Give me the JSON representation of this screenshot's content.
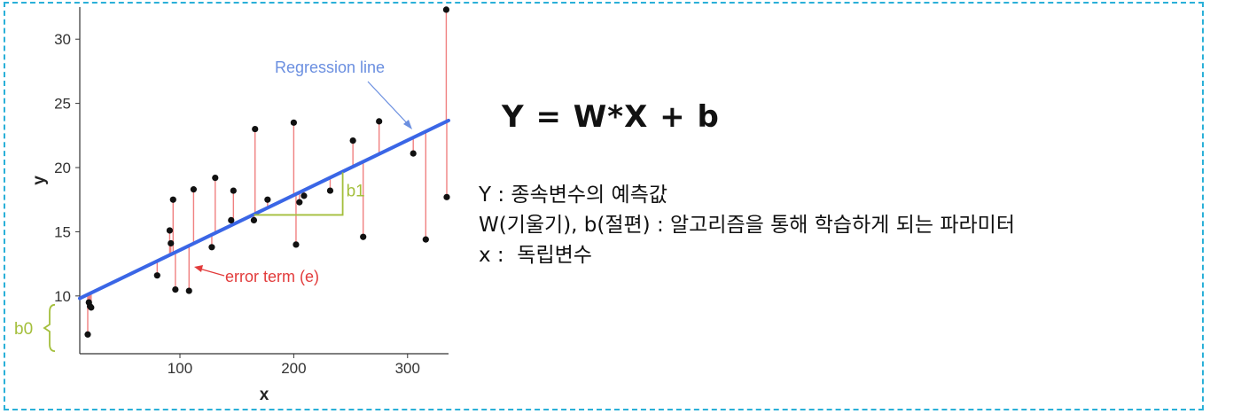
{
  "chart_data": {
    "type": "scatter",
    "xlabel": "x",
    "ylabel": "y",
    "xlim": [
      12,
      336
    ],
    "ylim": [
      5.5,
      32.5
    ],
    "xticks": [
      100,
      200,
      300
    ],
    "yticks": [
      10,
      15,
      20,
      25,
      30
    ],
    "points": [
      {
        "x": 20,
        "y": 9.5
      },
      {
        "x": 21,
        "y": 9.2
      },
      {
        "x": 22,
        "y": 9.1
      },
      {
        "x": 19,
        "y": 7.0
      },
      {
        "x": 80,
        "y": 11.6
      },
      {
        "x": 91,
        "y": 15.1
      },
      {
        "x": 92,
        "y": 14.1
      },
      {
        "x": 94,
        "y": 17.5
      },
      {
        "x": 96,
        "y": 10.5
      },
      {
        "x": 108,
        "y": 10.4
      },
      {
        "x": 112,
        "y": 18.3
      },
      {
        "x": 128,
        "y": 13.8
      },
      {
        "x": 131,
        "y": 19.2
      },
      {
        "x": 145,
        "y": 15.9
      },
      {
        "x": 147,
        "y": 18.2
      },
      {
        "x": 165,
        "y": 15.9
      },
      {
        "x": 166,
        "y": 23.0
      },
      {
        "x": 177,
        "y": 17.5
      },
      {
        "x": 200,
        "y": 23.5
      },
      {
        "x": 202,
        "y": 14.0
      },
      {
        "x": 205,
        "y": 17.3
      },
      {
        "x": 209,
        "y": 17.8
      },
      {
        "x": 232,
        "y": 18.2
      },
      {
        "x": 252,
        "y": 22.1
      },
      {
        "x": 261,
        "y": 14.6
      },
      {
        "x": 275,
        "y": 23.6
      },
      {
        "x": 305,
        "y": 21.1
      },
      {
        "x": 316,
        "y": 14.4
      },
      {
        "x": 334,
        "y": 32.3
      },
      {
        "x": 338,
        "y": 17.7
      }
    ],
    "regression_line": {
      "intercept": 9.3,
      "slope": 0.0425
    },
    "annotations": {
      "regression_line_label": "Regression line",
      "error_term_label": "error term (e)",
      "slope_label": "b1",
      "intercept_label": "b0"
    },
    "colors": {
      "line": "#3a66e6",
      "residual": "#f08080",
      "point": "#111111",
      "regression_label": "#6b8fe0",
      "error_label": "#e23b3b",
      "annotation_green": "#a4bf3c"
    }
  },
  "formula": "Y = W*X + b",
  "descriptions": [
    "Y : 종속변수의 예측값",
    "W(기울기), b(절편) : 알고리즘을 통해 학습하게 되는 파라미터",
    "x :  독립변수"
  ]
}
